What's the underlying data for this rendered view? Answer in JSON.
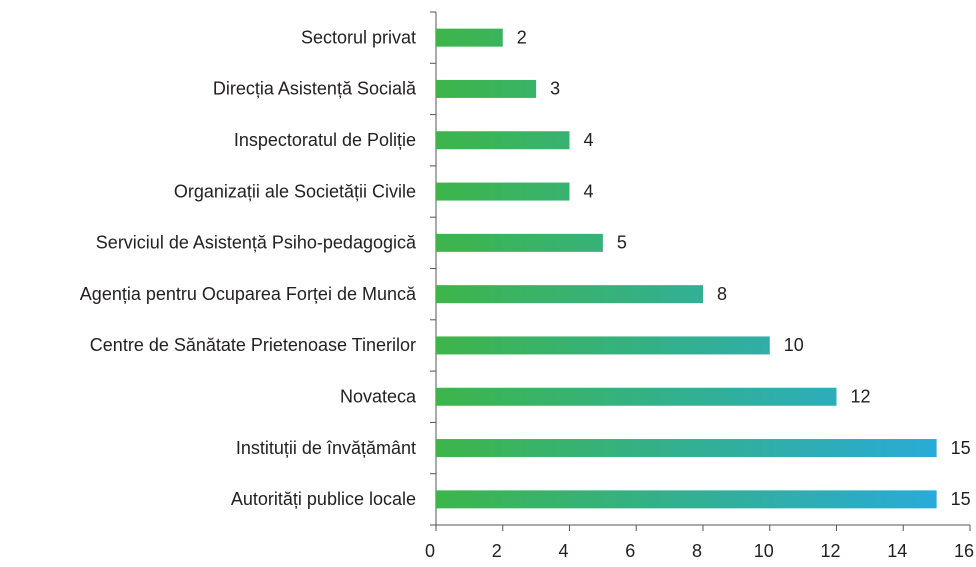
{
  "chart_data": {
    "type": "bar",
    "orientation": "horizontal",
    "categories": [
      "Sectorul privat",
      "Direcția Asistență Socială",
      "Inspectoratul de Poliție",
      "Organizații ale Societății Civile",
      "Serviciul de Asistență Psiho-pedagogică",
      "Agenția pentru Ocuparea Forței de Muncă",
      "Centre de Sănătate Prietenoase Tinerilor",
      "Novateca",
      "Instituții de învățământ",
      "Autorități publice locale"
    ],
    "values": [
      2,
      3,
      4,
      4,
      5,
      8,
      10,
      12,
      15,
      15
    ],
    "gradient": [
      "#3db54a",
      "#27aae1"
    ],
    "xlim": [
      0,
      16
    ],
    "xticks": [
      0,
      2,
      4,
      6,
      8,
      10,
      12,
      14,
      16
    ],
    "grid": false
  }
}
